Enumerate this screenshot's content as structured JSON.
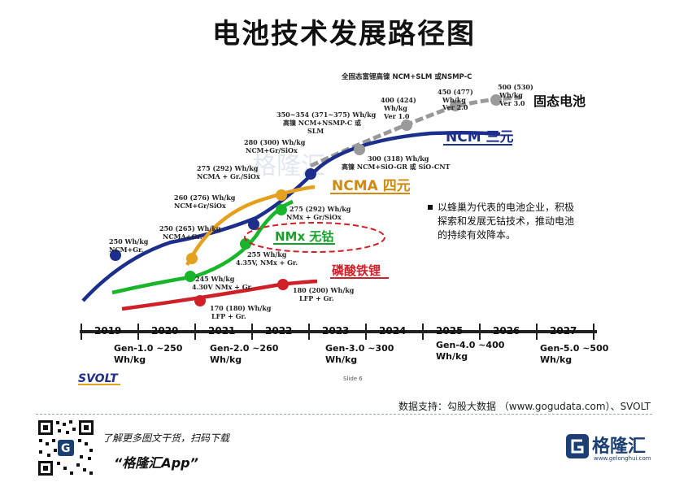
{
  "page_title": "电池技术发展路径图",
  "watermark": "格隆汇",
  "years": [
    "2019",
    "2020",
    "2021",
    "2022",
    "2023",
    "2024",
    "2025",
    "2026",
    "2027"
  ],
  "generations": [
    {
      "line1": "Gen-1.0 ~250",
      "line2": "Wh/kg"
    },
    {
      "line1": "Gen-2.0 ~260",
      "line2": "Wh/kg"
    },
    {
      "line1": "Gen-3.0 ~300",
      "line2": "Wh/kg"
    },
    {
      "line1": "Gen-4.0 ~400",
      "line2": "Wh/kg"
    },
    {
      "line1": "Gen-5.0 ~500",
      "line2": "Wh/kg"
    }
  ],
  "curve_labels": {
    "solid_state": "固态电池",
    "ncm": "NCM 三元",
    "ncma": "NCMA 四元",
    "nmx": "NMx 无钴",
    "lfp": "磷酸铁锂"
  },
  "callouts": {
    "top_header": "全固态富锂高镍 NCM+SLM 或NSMP-C",
    "ss_350": [
      "350~354 (371~375) Wh/kg",
      "高镍 NCM+NSMP-C 或",
      "SLM"
    ],
    "ss_400": [
      "400 (424)",
      "Wh/kg",
      "Ver 1.0"
    ],
    "ss_450": [
      "450 (477)",
      "Wh/kg",
      "Ver 2.0"
    ],
    "ss_500": [
      "500 (530)",
      "Wh/kg",
      "Ver 3.0"
    ],
    "ncm_250": [
      "250  Wh/kg",
      "NCM+Gr."
    ],
    "ncm_260": [
      "260 (276) Wh/kg",
      "NCM+Gr/SiOx"
    ],
    "ncm_280": [
      "280 (300) Wh/kg",
      "NCM+Gr/SiOx"
    ],
    "ncm_300": [
      "300 (318) Wh/kg",
      "高镍 NCM+SiO-GR 或 SiO-CNT"
    ],
    "ncma_250": [
      "250 (265) Wh/kg",
      "NCMA+Gr."
    ],
    "ncma_275": [
      "275 (292) Wh/kg",
      "NCMA + Gr./SiOx"
    ],
    "nmx_245": [
      "245 Wh/kg",
      "4.30V NMx + Gr."
    ],
    "nmx_255": [
      "255  Wh/kg",
      "4.35V, NMx + Gr."
    ],
    "nmx_275": [
      "275 (292) Wh/kg",
      "NMx + Gr/SiOx"
    ],
    "lfp_170": [
      "170 (180) Wh/kg",
      "LFP + Gr."
    ],
    "lfp_180": [
      "180 (200) Wh/kg",
      "LFP + Gr."
    ]
  },
  "note": [
    "以蜂巢为代表的电池企业，积极",
    "探索和发展无钴技术，推动电池",
    "的持续有效降本。"
  ],
  "svolt_logo": "SVOLT",
  "slide_no": "Slide 6",
  "source": "数据支持：勾股大数据 （www.gogudata.com）、SVOLT",
  "promo_line1": "了解更多图文干货，扫码下载",
  "promo_line2": "“格隆汇App”",
  "brand_name": "格隆汇",
  "brand_url": "www.gelonghui.com",
  "colors": {
    "ncm": "#1d2f8c",
    "ncma": "#e6a020",
    "nmx": "#18b52a",
    "lfp": "#cf2028",
    "solid": "#9a9a9a",
    "label_blue": "#1d2f8c",
    "label_red": "#cf2028"
  }
}
